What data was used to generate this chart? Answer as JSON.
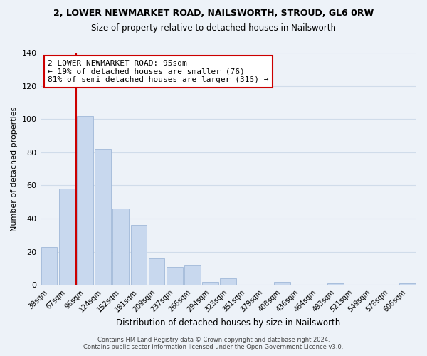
{
  "title1": "2, LOWER NEWMARKET ROAD, NAILSWORTH, STROUD, GL6 0RW",
  "title2": "Size of property relative to detached houses in Nailsworth",
  "xlabel": "Distribution of detached houses by size in Nailsworth",
  "ylabel": "Number of detached properties",
  "bar_color": "#c8d8ee",
  "bar_edge_color": "#a0b8d8",
  "categories": [
    "39sqm",
    "67sqm",
    "96sqm",
    "124sqm",
    "152sqm",
    "181sqm",
    "209sqm",
    "237sqm",
    "266sqm",
    "294sqm",
    "323sqm",
    "351sqm",
    "379sqm",
    "408sqm",
    "436sqm",
    "464sqm",
    "493sqm",
    "521sqm",
    "549sqm",
    "578sqm",
    "606sqm"
  ],
  "values": [
    23,
    58,
    102,
    82,
    46,
    36,
    16,
    11,
    12,
    2,
    4,
    0,
    0,
    2,
    0,
    0,
    1,
    0,
    0,
    0,
    1
  ],
  "vline_index": 2,
  "vline_color": "#cc0000",
  "annotation_text": "2 LOWER NEWMARKET ROAD: 95sqm\n← 19% of detached houses are smaller (76)\n81% of semi-detached houses are larger (315) →",
  "annotation_box_color": "#ffffff",
  "annotation_box_edge": "#cc0000",
  "footer1": "Contains HM Land Registry data © Crown copyright and database right 2024.",
  "footer2": "Contains public sector information licensed under the Open Government Licence v3.0.",
  "ylim": [
    0,
    140
  ],
  "grid_color": "#d0dcea",
  "background_color": "#edf2f8"
}
